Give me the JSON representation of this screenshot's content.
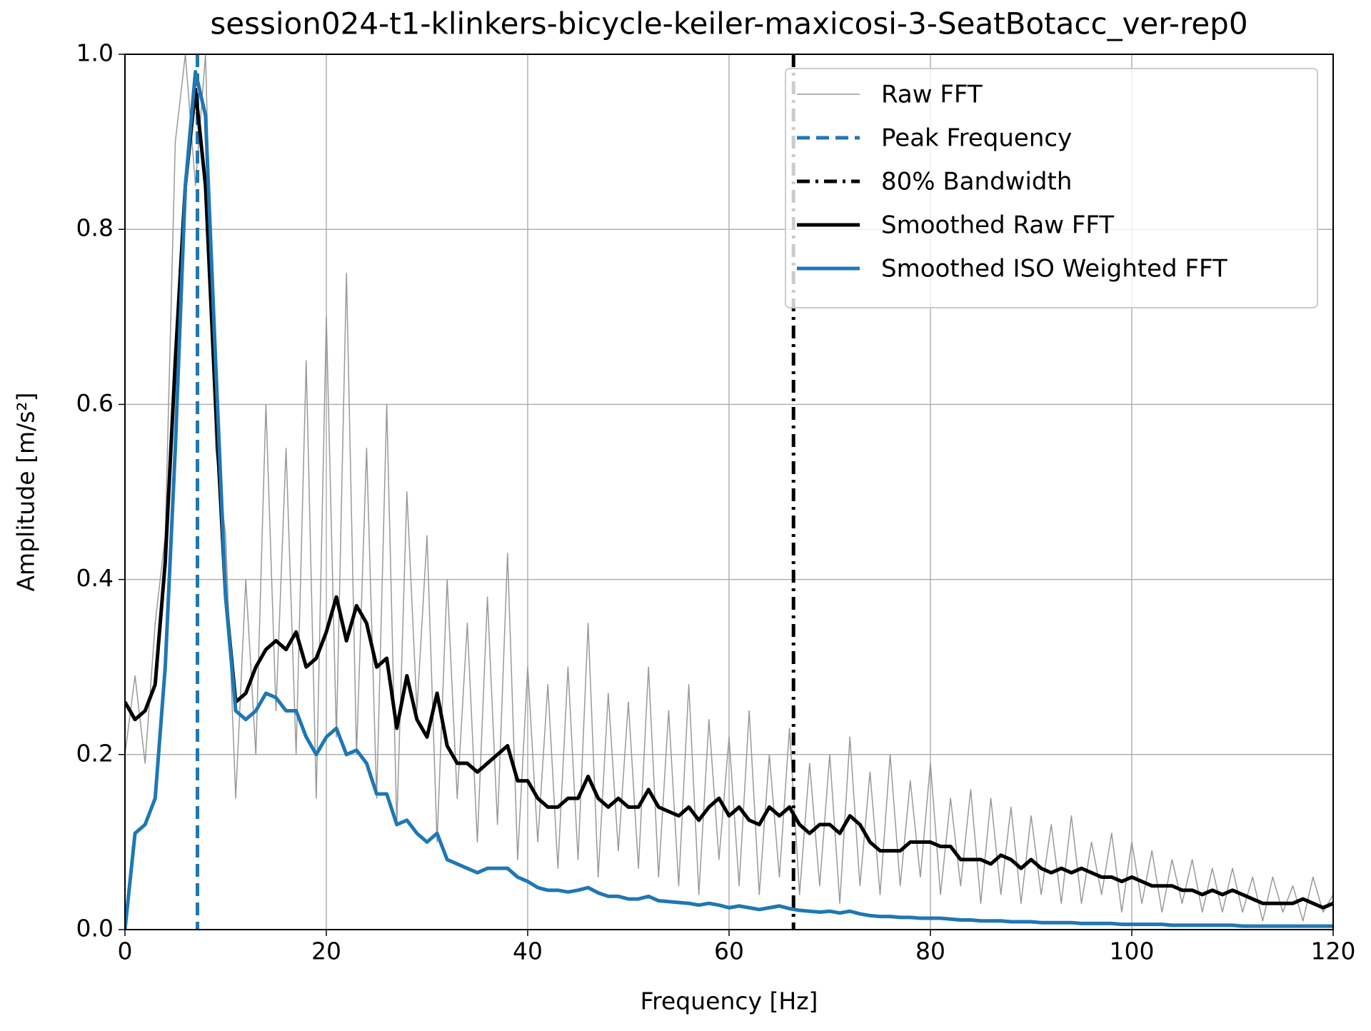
{
  "chart_data": {
    "type": "line",
    "title": "session024-t1-klinkers-bicycle-keiler-maxicosi-3-SeatBotacc_ver-rep0",
    "x_label": "Frequency [Hz]",
    "y_label": "Amplitude [m/s²]",
    "xlim": [
      0,
      120
    ],
    "ylim": [
      0,
      1
    ],
    "xticks": [
      0,
      20,
      40,
      60,
      80,
      100,
      120
    ],
    "yticks": [
      {
        "value": 0,
        "label": "0.0"
      },
      0.2,
      0.4,
      0.6,
      0.8,
      {
        "value": 1,
        "label": "1.0"
      }
    ],
    "grid": true,
    "legend": "upper right",
    "x": [
      0,
      1,
      2,
      3,
      4,
      5,
      6,
      7,
      8,
      9,
      10,
      11,
      12,
      13,
      14,
      15,
      16,
      17,
      18,
      19,
      20,
      21,
      22,
      23,
      24,
      25,
      26,
      27,
      28,
      29,
      30,
      31,
      32,
      33,
      34,
      35,
      36,
      37,
      38,
      39,
      40,
      41,
      42,
      43,
      44,
      45,
      46,
      47,
      48,
      49,
      50,
      51,
      52,
      53,
      54,
      55,
      56,
      57,
      58,
      59,
      60,
      61,
      62,
      63,
      64,
      65,
      66,
      67,
      68,
      69,
      70,
      71,
      72,
      73,
      74,
      75,
      76,
      77,
      78,
      79,
      80,
      81,
      82,
      83,
      84,
      85,
      86,
      87,
      88,
      89,
      90,
      91,
      92,
      93,
      94,
      95,
      96,
      97,
      98,
      99,
      100,
      101,
      102,
      103,
      104,
      105,
      106,
      107,
      108,
      109,
      110,
      111,
      112,
      113,
      114,
      115,
      116,
      117,
      118,
      119,
      120
    ],
    "series": [
      {
        "name": "Raw FFT",
        "color": "#999999",
        "width": 1.5,
        "values": [
          0.2,
          0.29,
          0.19,
          0.35,
          0.45,
          0.9,
          1.0,
          0.85,
          1.0,
          0.55,
          0.45,
          0.15,
          0.4,
          0.2,
          0.6,
          0.25,
          0.55,
          0.2,
          0.65,
          0.15,
          0.7,
          0.22,
          0.75,
          0.2,
          0.55,
          0.15,
          0.6,
          0.12,
          0.5,
          0.25,
          0.45,
          0.1,
          0.4,
          0.15,
          0.35,
          0.1,
          0.38,
          0.12,
          0.43,
          0.08,
          0.3,
          0.1,
          0.28,
          0.07,
          0.3,
          0.08,
          0.35,
          0.06,
          0.27,
          0.09,
          0.26,
          0.07,
          0.3,
          0.06,
          0.25,
          0.05,
          0.28,
          0.04,
          0.24,
          0.08,
          0.22,
          0.05,
          0.25,
          0.04,
          0.2,
          0.06,
          0.23,
          0.04,
          0.19,
          0.05,
          0.2,
          0.03,
          0.22,
          0.05,
          0.18,
          0.04,
          0.2,
          0.05,
          0.17,
          0.06,
          0.19,
          0.04,
          0.15,
          0.05,
          0.16,
          0.03,
          0.15,
          0.04,
          0.14,
          0.03,
          0.13,
          0.04,
          0.12,
          0.03,
          0.13,
          0.03,
          0.1,
          0.04,
          0.11,
          0.02,
          0.1,
          0.03,
          0.09,
          0.02,
          0.08,
          0.03,
          0.08,
          0.02,
          0.07,
          0.02,
          0.07,
          0.02,
          0.06,
          0.01,
          0.06,
          0.02,
          0.05,
          0.01,
          0.06,
          0.02,
          0.04
        ]
      },
      {
        "name": "Smoothed Raw FFT",
        "color": "#000000",
        "width": 5,
        "values": [
          0.26,
          0.24,
          0.25,
          0.28,
          0.42,
          0.65,
          0.85,
          0.96,
          0.85,
          0.6,
          0.38,
          0.26,
          0.27,
          0.3,
          0.32,
          0.33,
          0.32,
          0.34,
          0.3,
          0.31,
          0.34,
          0.38,
          0.33,
          0.37,
          0.35,
          0.3,
          0.31,
          0.23,
          0.29,
          0.24,
          0.22,
          0.27,
          0.21,
          0.19,
          0.19,
          0.18,
          0.19,
          0.2,
          0.21,
          0.17,
          0.17,
          0.15,
          0.14,
          0.14,
          0.15,
          0.15,
          0.175,
          0.15,
          0.14,
          0.15,
          0.14,
          0.14,
          0.16,
          0.14,
          0.135,
          0.13,
          0.14,
          0.125,
          0.14,
          0.15,
          0.13,
          0.14,
          0.125,
          0.12,
          0.14,
          0.13,
          0.14,
          0.12,
          0.11,
          0.12,
          0.12,
          0.11,
          0.13,
          0.12,
          0.1,
          0.09,
          0.09,
          0.09,
          0.1,
          0.1,
          0.1,
          0.095,
          0.095,
          0.08,
          0.08,
          0.08,
          0.075,
          0.085,
          0.08,
          0.07,
          0.08,
          0.07,
          0.065,
          0.07,
          0.065,
          0.07,
          0.065,
          0.06,
          0.06,
          0.055,
          0.06,
          0.055,
          0.05,
          0.05,
          0.05,
          0.045,
          0.045,
          0.04,
          0.045,
          0.04,
          0.045,
          0.04,
          0.035,
          0.03,
          0.03,
          0.03,
          0.03,
          0.035,
          0.03,
          0.025,
          0.03
        ]
      },
      {
        "name": "Smoothed ISO Weighted FFT",
        "color": "#1f77b4",
        "width": 5,
        "values": [
          0.0,
          0.11,
          0.12,
          0.15,
          0.3,
          0.55,
          0.85,
          0.98,
          0.93,
          0.65,
          0.38,
          0.25,
          0.24,
          0.25,
          0.27,
          0.265,
          0.25,
          0.25,
          0.22,
          0.2,
          0.22,
          0.23,
          0.2,
          0.205,
          0.19,
          0.155,
          0.155,
          0.12,
          0.125,
          0.11,
          0.1,
          0.11,
          0.08,
          0.075,
          0.07,
          0.065,
          0.07,
          0.07,
          0.07,
          0.06,
          0.055,
          0.048,
          0.045,
          0.045,
          0.043,
          0.045,
          0.048,
          0.042,
          0.038,
          0.038,
          0.035,
          0.035,
          0.038,
          0.033,
          0.032,
          0.031,
          0.03,
          0.028,
          0.03,
          0.028,
          0.025,
          0.027,
          0.025,
          0.023,
          0.025,
          0.027,
          0.024,
          0.022,
          0.021,
          0.02,
          0.021,
          0.019,
          0.021,
          0.018,
          0.016,
          0.015,
          0.015,
          0.014,
          0.014,
          0.013,
          0.013,
          0.013,
          0.012,
          0.011,
          0.011,
          0.01,
          0.01,
          0.01,
          0.009,
          0.009,
          0.009,
          0.008,
          0.008,
          0.008,
          0.008,
          0.007,
          0.007,
          0.007,
          0.007,
          0.006,
          0.006,
          0.006,
          0.006,
          0.006,
          0.005,
          0.005,
          0.005,
          0.005,
          0.005,
          0.005,
          0.005,
          0.004,
          0.004,
          0.004,
          0.004,
          0.004,
          0.004,
          0.004,
          0.004,
          0.004,
          0.004
        ]
      }
    ],
    "vlines": [
      {
        "name": "Peak Frequency",
        "x": 7.2,
        "color": "#1f77b4",
        "style": "dashed"
      },
      {
        "name": "80% Bandwidth",
        "x": 66.4,
        "color": "#000000",
        "style": "dashdot"
      }
    ]
  }
}
